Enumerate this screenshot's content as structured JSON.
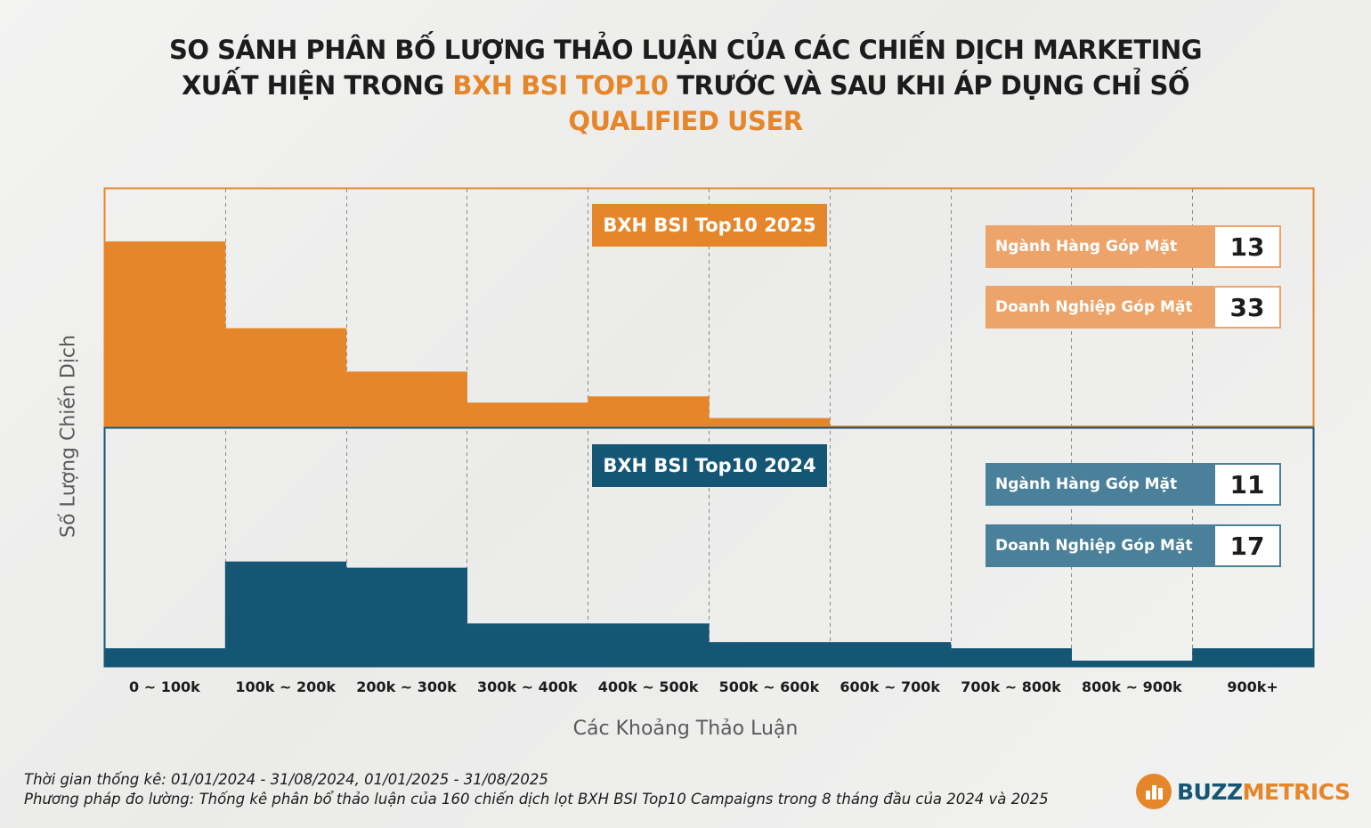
{
  "title": {
    "line1": "SO SÁNH PHÂN BỐ LƯỢNG THẢO LUẬN CỦA CÁC CHIẾN DỊCH MARKETING",
    "line2_pre": "XUẤT HIỆN TRONG ",
    "line2_highlight": "BXH BSI TOP10",
    "line2_post": " TRƯỚC VÀ SAU KHI ÁP DỤNG CHỈ SỐ",
    "line3_highlight": "QUALIFIED USER"
  },
  "colors": {
    "orange": "#e5862b",
    "teal": "#145674",
    "orange_light": "#eda46a",
    "teal_light": "#4a809a"
  },
  "panel_2025": {
    "badge": "BXH BSI Top10 2025",
    "stats": [
      {
        "label": "Ngành Hàng Góp Mặt",
        "value": "13"
      },
      {
        "label": "Doanh Nghiệp Góp Mặt",
        "value": "33"
      }
    ]
  },
  "panel_2024": {
    "badge": "BXH BSI Top10 2024",
    "stats": [
      {
        "label": "Ngành Hàng Góp Mặt",
        "value": "11"
      },
      {
        "label": "Doanh Nghiệp Góp Mặt",
        "value": "17"
      }
    ]
  },
  "chart_data": {
    "type": "bar",
    "title": "So sánh phân bố lượng thảo luận của các chiến dịch marketing xuất hiện trong BXH BSI Top10",
    "xlabel": "Các Khoảng Thảo Luận",
    "ylabel": "Số Lượng Chiến Dịch",
    "categories": [
      "0 ~ 100k",
      "100k ~ 200k",
      "200k ~ 300k",
      "300k ~ 400k",
      "400k ~ 500k",
      "500k ~ 600k",
      "600k ~ 700k",
      "700k ~ 800k",
      "800k ~ 900k",
      "900k+"
    ],
    "series": [
      {
        "name": "BXH BSI Top10 2025",
        "values": [
          60,
          32,
          18,
          8,
          10,
          3,
          0.5,
          0.5,
          0.5,
          0.5
        ]
      },
      {
        "name": "BXH BSI Top10 2024",
        "values": [
          6,
          34,
          32,
          14,
          14,
          8,
          8,
          6,
          2,
          6
        ]
      }
    ],
    "ylim": [
      0,
      77
    ],
    "grid": "vertical dashed",
    "legend": "badges at top-center of each panel"
  },
  "footnotes": {
    "period": "Thời gian thống kê: 01/01/2024 - 31/08/2024, 01/01/2025 - 31/08/2025",
    "method": "Phương pháp đo lường: Thống kê phân bổ thảo luận của 160 chiến dịch lọt BXH BSI Top10 Campaigns trong 8 tháng đầu của 2024 và 2025"
  },
  "logo": {
    "part1": "BUZZ",
    "part2": "METRICS",
    "icon": "bar-chart-bubble-icon"
  }
}
